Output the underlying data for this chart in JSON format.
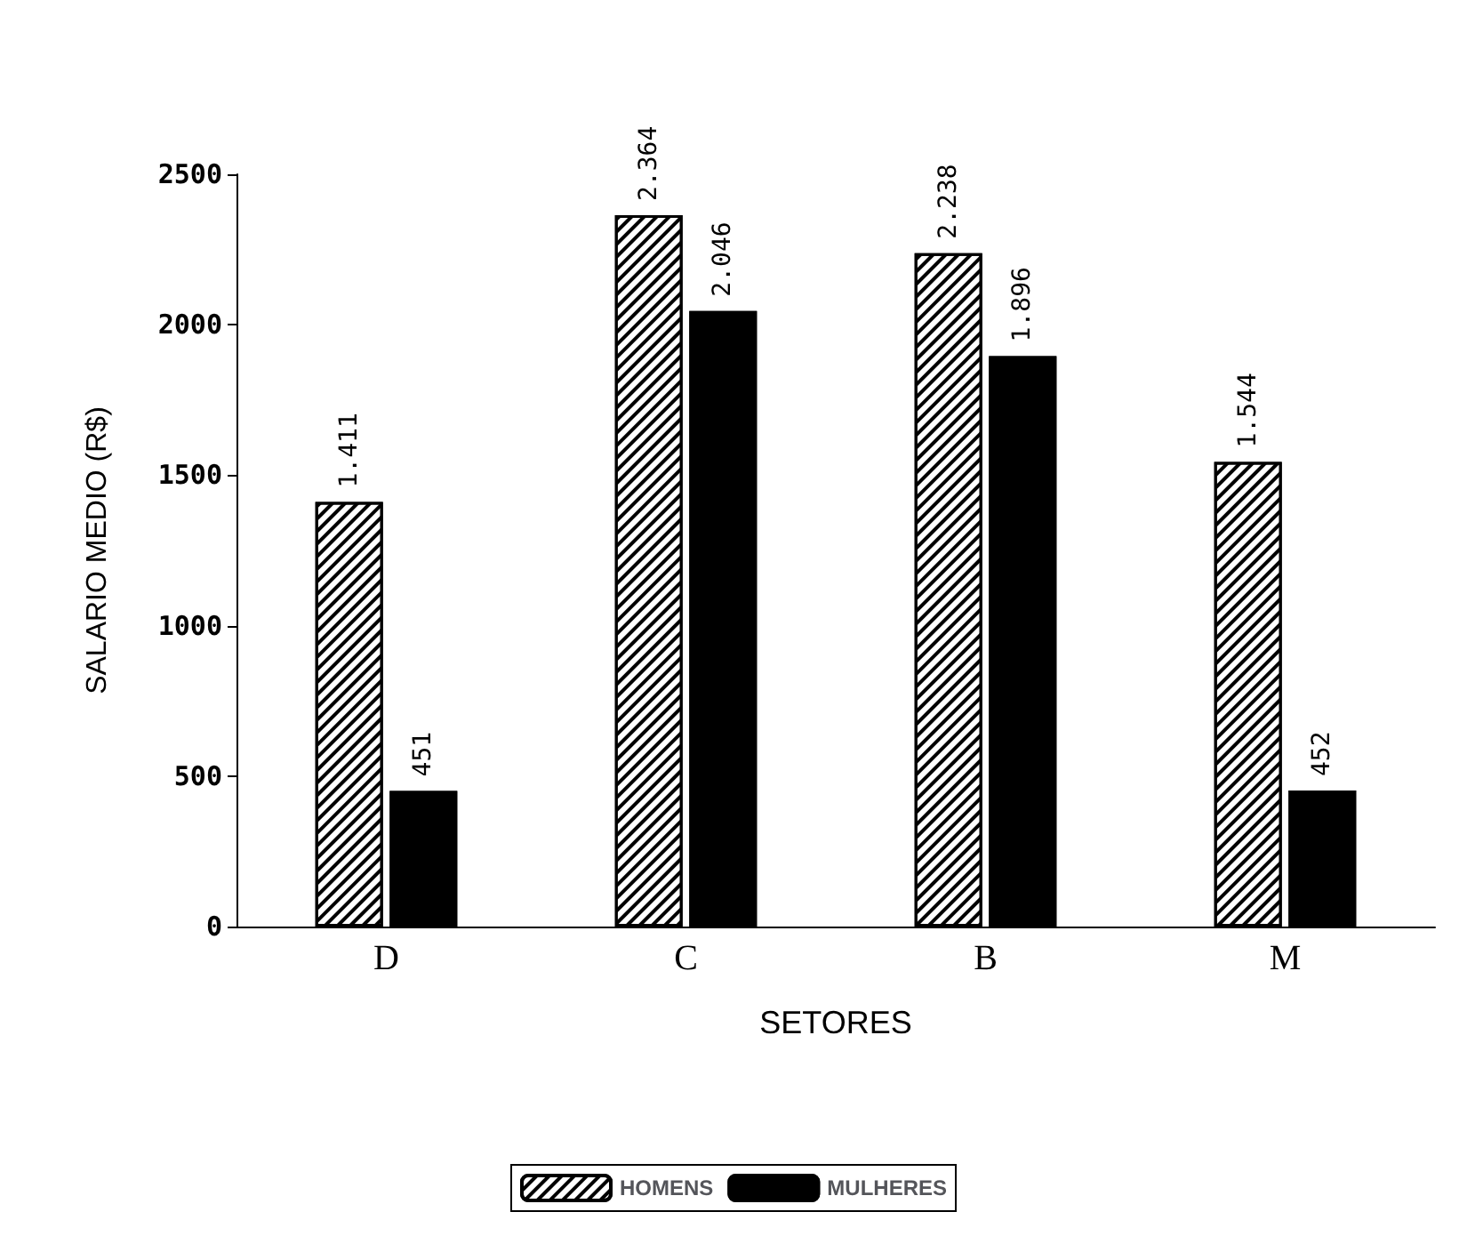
{
  "chart_data": {
    "type": "bar",
    "xlabel": "SETORES",
    "ylabel": "SALARIO MEDIO (R$)",
    "categories": [
      "D",
      "C",
      "B",
      "M"
    ],
    "series": [
      {
        "name": "HOMENS",
        "color": "#ffffff",
        "values": [
          1411,
          2364,
          2238,
          1544
        ],
        "value_labels": [
          "1.411",
          "2.364",
          "2.238",
          "1.544"
        ]
      },
      {
        "name": "MULHERES",
        "color": "#000000",
        "values": [
          451,
          2046,
          1896,
          452
        ],
        "value_labels": [
          "451",
          "2.046",
          "1.896",
          "452"
        ]
      }
    ],
    "ylim": [
      0,
      2500
    ],
    "yticks": [
      0,
      500,
      1000,
      1500,
      2000,
      2500
    ],
    "legend": "bottom",
    "grid": false
  }
}
